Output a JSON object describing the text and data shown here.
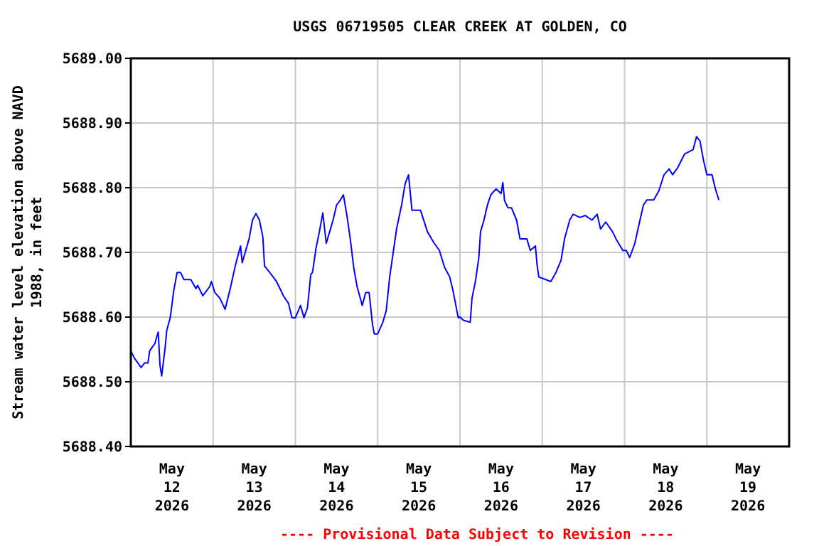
{
  "chart_data": {
    "type": "line",
    "title": "USGS 06719505 CLEAR CREEK AT GOLDEN, CO",
    "ylabel": "Stream water level elevation above NAVD 1988, in feet",
    "annotations": [
      "---- Provisional Data Subject to Revision ----"
    ],
    "grid": true,
    "line_style": "solid",
    "xlim": [
      "2026-05-12T00:00",
      "2026-05-20T00:00"
    ],
    "xticks": [
      {
        "value": "2026-05-12T12:00",
        "label": "May 12 2026"
      },
      {
        "value": "2026-05-13T12:00",
        "label": "May 13 2026"
      },
      {
        "value": "2026-05-14T12:00",
        "label": "May 14 2026"
      },
      {
        "value": "2026-05-15T12:00",
        "label": "May 15 2026"
      },
      {
        "value": "2026-05-16T12:00",
        "label": "May 16 2026"
      },
      {
        "value": "2026-05-17T12:00",
        "label": "May 17 2026"
      },
      {
        "value": "2026-05-18T12:00",
        "label": "May 18 2026"
      },
      {
        "value": "2026-05-19T12:00",
        "label": "May 19 2026"
      },
      {
        "value": "2026-05-13T00:00",
        "label": null
      },
      {
        "value": "2026-05-14T00:00",
        "label": null
      },
      {
        "value": "2026-05-15T00:00",
        "label": null
      },
      {
        "value": "2026-05-16T00:00",
        "label": null
      },
      {
        "value": "2026-05-17T00:00",
        "label": null
      },
      {
        "value": "2026-05-18T00:00",
        "label": null
      },
      {
        "value": "2026-05-19T00:00",
        "label": null
      }
    ],
    "ylim": [
      5688.4,
      5689.0
    ],
    "yticks": [
      {
        "value": 5688.4,
        "label": "5688.40"
      },
      {
        "value": 5688.5,
        "label": "5688.50"
      },
      {
        "value": 5688.6,
        "label": "5688.60"
      },
      {
        "value": 5688.7,
        "label": "5688.70"
      },
      {
        "value": 5688.8,
        "label": "5688.80"
      },
      {
        "value": 5688.9,
        "label": "5688.90"
      },
      {
        "value": 5689.0,
        "label": "5689.00"
      }
    ],
    "series": [
      {
        "color": "#0000ff",
        "x": [
          "2026-05-12T00:00",
          "2026-05-12T01:00",
          "2026-05-12T03:00",
          "2026-05-12T04:00",
          "2026-05-12T05:00",
          "2026-05-12T05:30",
          "2026-05-12T07:00",
          "2026-05-12T08:00",
          "2026-05-12T08:30",
          "2026-05-12T09:00",
          "2026-05-12T10:00",
          "2026-05-12T10:30",
          "2026-05-12T11:30",
          "2026-05-12T12:30",
          "2026-05-12T13:30",
          "2026-05-12T14:30",
          "2026-05-12T15:30",
          "2026-05-12T17:30",
          "2026-05-12T19:00",
          "2026-05-12T19:30",
          "2026-05-12T21:00",
          "2026-05-12T23:00",
          "2026-05-12T23:30",
          "2026-05-13T00:30",
          "2026-05-13T02:00",
          "2026-05-13T03:30",
          "2026-05-13T05:00",
          "2026-05-13T06:30",
          "2026-05-13T08:00",
          "2026-05-13T08:30",
          "2026-05-13T10:30",
          "2026-05-13T11:30",
          "2026-05-13T12:30",
          "2026-05-13T13:30",
          "2026-05-13T14:30",
          "2026-05-13T15:00",
          "2026-05-13T16:30",
          "2026-05-13T18:30",
          "2026-05-13T20:30",
          "2026-05-13T22:00",
          "2026-05-13T23:00",
          "2026-05-14T00:00",
          "2026-05-14T01:30",
          "2026-05-14T02:30",
          "2026-05-14T03:30",
          "2026-05-14T04:30",
          "2026-05-14T05:00",
          "2026-05-14T06:00",
          "2026-05-14T07:00",
          "2026-05-14T08:00",
          "2026-05-14T09:00",
          "2026-05-14T10:00",
          "2026-05-14T11:00",
          "2026-05-14T12:00",
          "2026-05-14T13:00",
          "2026-05-14T14:00",
          "2026-05-14T15:00",
          "2026-05-14T16:00",
          "2026-05-14T17:00",
          "2026-05-14T18:00",
          "2026-05-14T19:30",
          "2026-05-14T20:30",
          "2026-05-14T21:30",
          "2026-05-14T22:30",
          "2026-05-14T23:00",
          "2026-05-15T00:00",
          "2026-05-15T01:30",
          "2026-05-15T02:30",
          "2026-05-15T03:30",
          "2026-05-15T04:30",
          "2026-05-15T05:30",
          "2026-05-15T07:00",
          "2026-05-15T08:00",
          "2026-05-15T09:00",
          "2026-05-15T10:00",
          "2026-05-15T11:00",
          "2026-05-15T12:30",
          "2026-05-15T14:30",
          "2026-05-15T16:30",
          "2026-05-15T18:00",
          "2026-05-15T19:30",
          "2026-05-15T21:00",
          "2026-05-15T22:00",
          "2026-05-15T23:30",
          "2026-05-16T00:00",
          "2026-05-16T01:00",
          "2026-05-16T03:00",
          "2026-05-16T03:30",
          "2026-05-16T04:30",
          "2026-05-16T05:30",
          "2026-05-16T06:00",
          "2026-05-16T07:00",
          "2026-05-16T08:00",
          "2026-05-16T09:00",
          "2026-05-16T10:30",
          "2026-05-16T12:00",
          "2026-05-16T12:30",
          "2026-05-16T13:00",
          "2026-05-16T14:00",
          "2026-05-16T15:00",
          "2026-05-16T16:30",
          "2026-05-16T17:30",
          "2026-05-16T19:30",
          "2026-05-16T20:30",
          "2026-05-16T22:00",
          "2026-05-16T22:30",
          "2026-05-16T23:00",
          "2026-05-17T01:00",
          "2026-05-17T02:30",
          "2026-05-17T04:00",
          "2026-05-17T05:30",
          "2026-05-17T06:30",
          "2026-05-17T08:00",
          "2026-05-17T09:00",
          "2026-05-17T11:00",
          "2026-05-17T12:30",
          "2026-05-17T14:30",
          "2026-05-17T16:00",
          "2026-05-17T17:00",
          "2026-05-17T18:30",
          "2026-05-17T20:30",
          "2026-05-17T21:30",
          "2026-05-17T23:30",
          "2026-05-18T00:30",
          "2026-05-18T01:30",
          "2026-05-18T03:00",
          "2026-05-18T04:30",
          "2026-05-18T05:30",
          "2026-05-18T06:30",
          "2026-05-18T08:30",
          "2026-05-18T10:00",
          "2026-05-18T11:30",
          "2026-05-18T13:00",
          "2026-05-18T14:00",
          "2026-05-18T15:30",
          "2026-05-18T17:30",
          "2026-05-18T20:00",
          "2026-05-18T21:00",
          "2026-05-18T22:00",
          "2026-05-18T23:00",
          "2026-05-19T00:00",
          "2026-05-19T01:30",
          "2026-05-19T02:30",
          "2026-05-19T03:30"
        ],
        "values": [
          5688.548,
          5688.537,
          5688.522,
          5688.529,
          5688.529,
          5688.548,
          5688.559,
          5688.577,
          5688.526,
          5688.509,
          5688.552,
          5688.58,
          5688.599,
          5688.64,
          5688.669,
          5688.669,
          5688.658,
          5688.658,
          5688.644,
          5688.649,
          5688.633,
          5688.647,
          5688.655,
          5688.638,
          5688.629,
          5688.612,
          5688.644,
          5688.68,
          5688.71,
          5688.684,
          5688.721,
          5688.75,
          5688.76,
          5688.75,
          5688.724,
          5688.679,
          5688.669,
          5688.655,
          5688.633,
          5688.621,
          5688.599,
          5688.599,
          5688.618,
          5688.599,
          5688.614,
          5688.666,
          5688.669,
          5688.706,
          5688.732,
          5688.761,
          5688.714,
          5688.732,
          5688.75,
          5688.773,
          5688.78,
          5688.789,
          5688.758,
          5688.721,
          5688.677,
          5688.647,
          5688.618,
          5688.638,
          5688.638,
          5688.588,
          5688.574,
          5688.574,
          5688.592,
          5688.61,
          5688.662,
          5688.699,
          5688.736,
          5688.774,
          5688.806,
          5688.82,
          5688.765,
          5688.765,
          5688.765,
          5688.732,
          5688.714,
          5688.703,
          5688.677,
          5688.662,
          5688.64,
          5688.599,
          5688.6,
          5688.595,
          5688.592,
          5688.629,
          5688.655,
          5688.692,
          5688.732,
          5688.75,
          5688.773,
          5688.789,
          5688.798,
          5688.791,
          5688.808,
          5688.78,
          5688.769,
          5688.769,
          5688.75,
          5688.721,
          5688.721,
          5688.703,
          5688.71,
          5688.68,
          5688.662,
          5688.658,
          5688.655,
          5688.669,
          5688.688,
          5688.721,
          5688.75,
          5688.759,
          5688.754,
          5688.757,
          5688.75,
          5688.759,
          5688.736,
          5688.747,
          5688.732,
          5688.721,
          5688.703,
          5688.703,
          5688.692,
          5688.714,
          5688.75,
          5688.773,
          5688.781,
          5688.781,
          5688.795,
          5688.82,
          5688.829,
          5688.82,
          5688.831,
          5688.852,
          5688.859,
          5688.879,
          5688.872,
          5688.843,
          5688.82,
          5688.82,
          5688.798,
          5688.781
        ]
      }
    ]
  }
}
